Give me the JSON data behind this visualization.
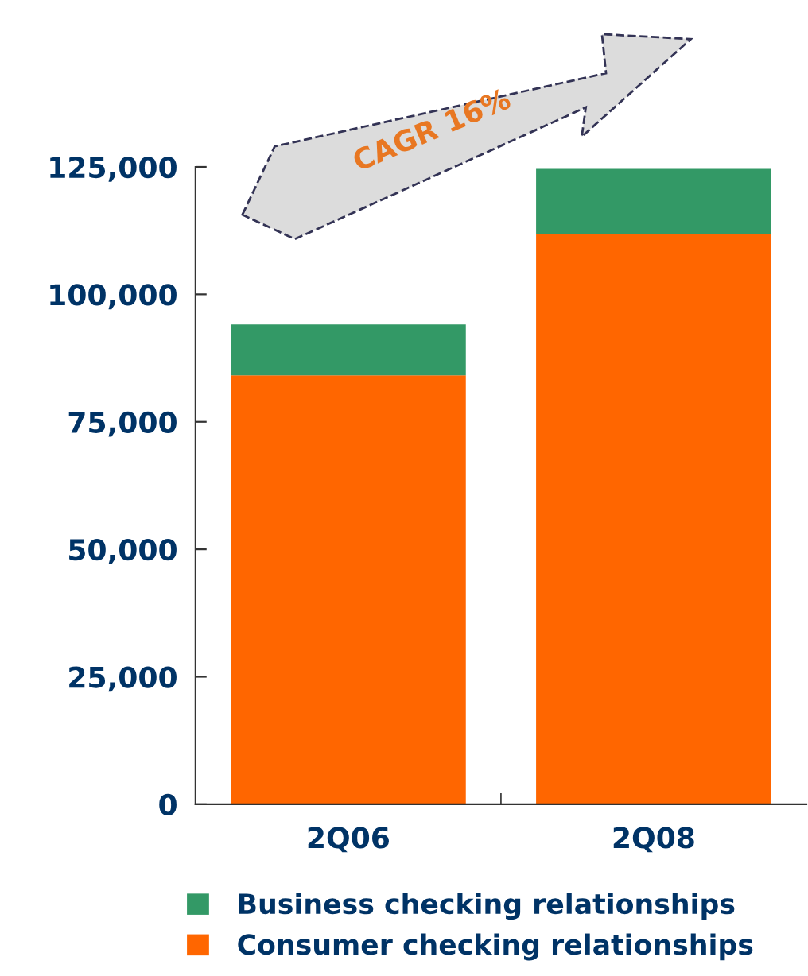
{
  "chart_data": {
    "type": "bar",
    "stacked": true,
    "categories": [
      "2Q06",
      "2Q08"
    ],
    "series": [
      {
        "name": "Consumer checking relationships",
        "color": "#ff6600",
        "values": [
          84100,
          111900
        ]
      },
      {
        "name": "Business checking relationships",
        "color": "#339966",
        "values": [
          10000,
          12700
        ]
      }
    ],
    "ylim": [
      0,
      125000
    ],
    "yticks": [
      {
        "value": 0,
        "label": "0"
      },
      {
        "value": 25000,
        "label": "25,000"
      },
      {
        "value": 50000,
        "label": "50,000"
      },
      {
        "value": 75000,
        "label": "75,000"
      },
      {
        "value": 100000,
        "label": "100,000"
      },
      {
        "value": 125000,
        "label": "125,000"
      }
    ],
    "annotations": [
      "CAGR 16%"
    ],
    "grid": false,
    "legend": "bottom"
  }
}
